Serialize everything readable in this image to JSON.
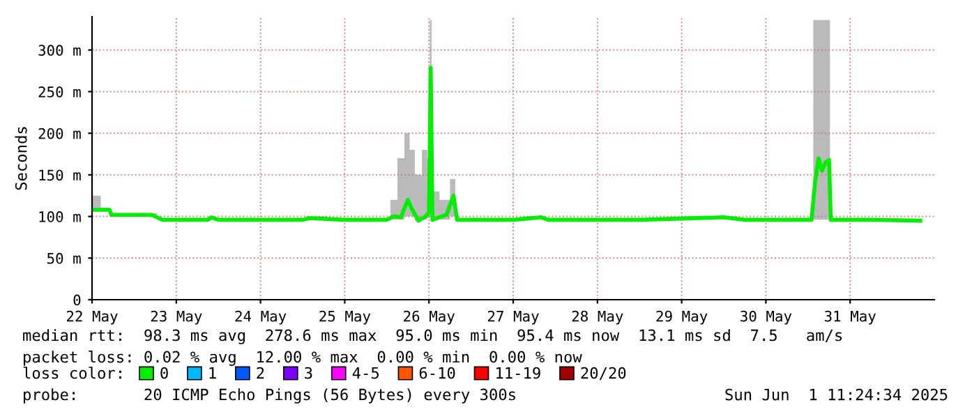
{
  "chart_data": {
    "type": "line",
    "ylabel": "Seconds",
    "legend_title": "loss color:",
    "legend": "bottom",
    "grid": true,
    "marker": "none",
    "line_style": "solid",
    "x": [
      "2025-05-22T00:00",
      "2025-05-22T05:00",
      "2025-05-22T05:30",
      "2025-05-22T17:00",
      "2025-05-22T20:00",
      "2025-05-23T09:00",
      "2025-05-23T10:00",
      "2025-05-23T12:00",
      "2025-05-24T05:00",
      "2025-05-24T12:00",
      "2025-05-24T14:00",
      "2025-05-25T00:00",
      "2025-05-25T12:00",
      "2025-05-25T14:00",
      "2025-05-25T16:00",
      "2025-05-25T18:00",
      "2025-05-25T19:00",
      "2025-05-25T21:00",
      "2025-05-25T23:00",
      "2025-05-26T00:00",
      "2025-05-26T00:30",
      "2025-05-26T01:00",
      "2025-05-26T05:00",
      "2025-05-26T07:00",
      "2025-05-26T08:00",
      "2025-05-27T00:00",
      "2025-05-27T08:00",
      "2025-05-27T10:00",
      "2025-05-28T12:00",
      "2025-05-29T12:00",
      "2025-05-29T14:00",
      "2025-05-29T18:00",
      "2025-05-30T00:00",
      "2025-05-30T13:00",
      "2025-05-30T14:00",
      "2025-05-30T15:00",
      "2025-05-30T16:00",
      "2025-05-30T17:00",
      "2025-05-30T18:00",
      "2025-05-30T18:30",
      "2025-05-31T06:00",
      "2025-05-31T20:00"
    ],
    "series": [
      {
        "name": "0",
        "color": "#00ee00",
        "values": [
          108,
          108,
          102,
          102,
          96,
          96,
          99,
          96,
          96,
          96,
          98,
          96,
          96,
          100,
          99,
          120,
          110,
          95,
          100,
          105,
          278.6,
          96,
          102,
          125,
          96,
          96,
          99,
          96,
          96,
          99,
          98,
          96,
          96,
          96,
          140,
          170,
          155,
          165,
          168,
          96,
          96,
          95
        ],
        "lower": [
          108,
          108,
          102,
          102,
          96,
          96,
          99,
          96,
          96,
          96,
          98,
          96,
          96,
          96,
          96,
          100,
          100,
          95,
          96,
          98,
          100,
          96,
          96,
          100,
          96,
          96,
          99,
          96,
          96,
          99,
          98,
          96,
          96,
          96,
          96,
          96,
          96,
          96,
          96,
          96,
          96,
          95
        ],
        "upper": [
          125,
          110,
          104,
          104,
          98,
          98,
          100,
          98,
          98,
          98,
          100,
          98,
          98,
          120,
          170,
          200,
          180,
          150,
          180,
          170,
          336,
          130,
          120,
          145,
          98,
          98,
          100,
          98,
          98,
          100,
          100,
          98,
          98,
          98,
          336,
          336,
          336,
          336,
          336,
          98,
          98,
          97
        ]
      },
      {
        "name": "1",
        "color": "#00b8ff",
        "values": [
          null,
          null,
          null,
          null,
          null,
          null,
          null,
          null,
          null,
          null,
          null,
          null,
          null,
          null,
          null,
          null,
          null,
          null,
          null,
          null,
          null,
          null,
          null,
          null,
          null,
          null,
          null,
          null,
          null,
          null,
          null,
          null,
          null,
          null,
          null,
          null,
          null,
          null,
          null,
          null,
          null,
          null
        ]
      },
      {
        "name": "2",
        "color": "#0059ff",
        "values": [
          null,
          null,
          null,
          null,
          null,
          null,
          null,
          null,
          null,
          null,
          null,
          null,
          null,
          null,
          null,
          null,
          null,
          null,
          null,
          null,
          null,
          null,
          null,
          null,
          null,
          null,
          null,
          null,
          null,
          null,
          null,
          null,
          null,
          null,
          null,
          null,
          null,
          null,
          null,
          null,
          null,
          null
        ]
      },
      {
        "name": "3",
        "color": "#7e00ff",
        "values": [
          null,
          null,
          null,
          null,
          null,
          null,
          null,
          null,
          null,
          null,
          null,
          null,
          null,
          null,
          null,
          null,
          null,
          null,
          null,
          null,
          null,
          null,
          null,
          null,
          null,
          null,
          null,
          null,
          null,
          null,
          null,
          null,
          null,
          null,
          null,
          null,
          null,
          null,
          null,
          null,
          null,
          null
        ]
      },
      {
        "name": "4-5",
        "color": "#ff00ff",
        "values": [
          null,
          null,
          null,
          null,
          null,
          null,
          null,
          null,
          null,
          null,
          null,
          null,
          null,
          null,
          null,
          null,
          null,
          null,
          null,
          null,
          null,
          null,
          null,
          null,
          null,
          null,
          null,
          null,
          null,
          null,
          null,
          null,
          null,
          null,
          null,
          null,
          null,
          null,
          null,
          null,
          null,
          null
        ]
      },
      {
        "name": "6-10",
        "color": "#ff5500",
        "values": [
          null,
          null,
          null,
          null,
          null,
          null,
          null,
          null,
          null,
          null,
          null,
          null,
          null,
          null,
          null,
          null,
          null,
          null,
          null,
          null,
          null,
          null,
          null,
          null,
          null,
          null,
          null,
          null,
          null,
          null,
          null,
          null,
          null,
          null,
          null,
          null,
          null,
          null,
          null,
          null,
          null,
          null
        ]
      },
      {
        "name": "11-19",
        "color": "#ff0000",
        "values": [
          null,
          null,
          null,
          null,
          null,
          null,
          null,
          null,
          null,
          null,
          null,
          null,
          null,
          null,
          null,
          null,
          null,
          null,
          null,
          null,
          null,
          null,
          null,
          null,
          null,
          null,
          null,
          null,
          null,
          null,
          null,
          null,
          null,
          null,
          null,
          null,
          null,
          null,
          null,
          null,
          null,
          null
        ]
      },
      {
        "name": "20/20",
        "color": "#a10000",
        "values": [
          null,
          null,
          null,
          null,
          null,
          null,
          null,
          null,
          null,
          null,
          null,
          null,
          null,
          null,
          null,
          null,
          null,
          null,
          null,
          null,
          null,
          null,
          null,
          null,
          null,
          null,
          null,
          null,
          null,
          null,
          null,
          null,
          null,
          null,
          null,
          null,
          null,
          null,
          null,
          null,
          null,
          null
        ]
      }
    ],
    "xlim": [
      "2025-05-22T00:00",
      "2025-06-01T00:00"
    ],
    "xticks": [
      {
        "value": "2025-05-22",
        "label": "22 May"
      },
      {
        "value": "2025-05-23",
        "label": "23 May"
      },
      {
        "value": "2025-05-24",
        "label": "24 May"
      },
      {
        "value": "2025-05-25",
        "label": "25 May"
      },
      {
        "value": "2025-05-26",
        "label": "26 May"
      },
      {
        "value": "2025-05-27",
        "label": "27 May"
      },
      {
        "value": "2025-05-28",
        "label": "28 May"
      },
      {
        "value": "2025-05-29",
        "label": "29 May"
      },
      {
        "value": "2025-05-30",
        "label": "30 May"
      },
      {
        "value": "2025-05-31",
        "label": "31 May"
      }
    ],
    "ylim": [
      0,
      340
    ],
    "yticks": [
      0,
      {
        "value": 50,
        "label": "50 m"
      },
      {
        "value": 100,
        "label": "100 m"
      },
      {
        "value": 150,
        "label": "150 m"
      },
      {
        "value": 200,
        "label": "200 m"
      },
      {
        "value": 250,
        "label": "250 m"
      },
      {
        "value": 300,
        "label": "300 m"
      }
    ],
    "annotations": [
      "median rtt:  98.3 ms avg  278.6 ms max  95.0 ms min  95.4 ms now  13.1 ms sd  7.5   am/s",
      "packet loss: 0.02 % avg  12.00 % max  0.00 % min  0.00 % now",
      "probe:       20 ICMP Echo Pings (56 Bytes) every 300s",
      "Sun Jun  1 11:24:34 2025"
    ]
  }
}
